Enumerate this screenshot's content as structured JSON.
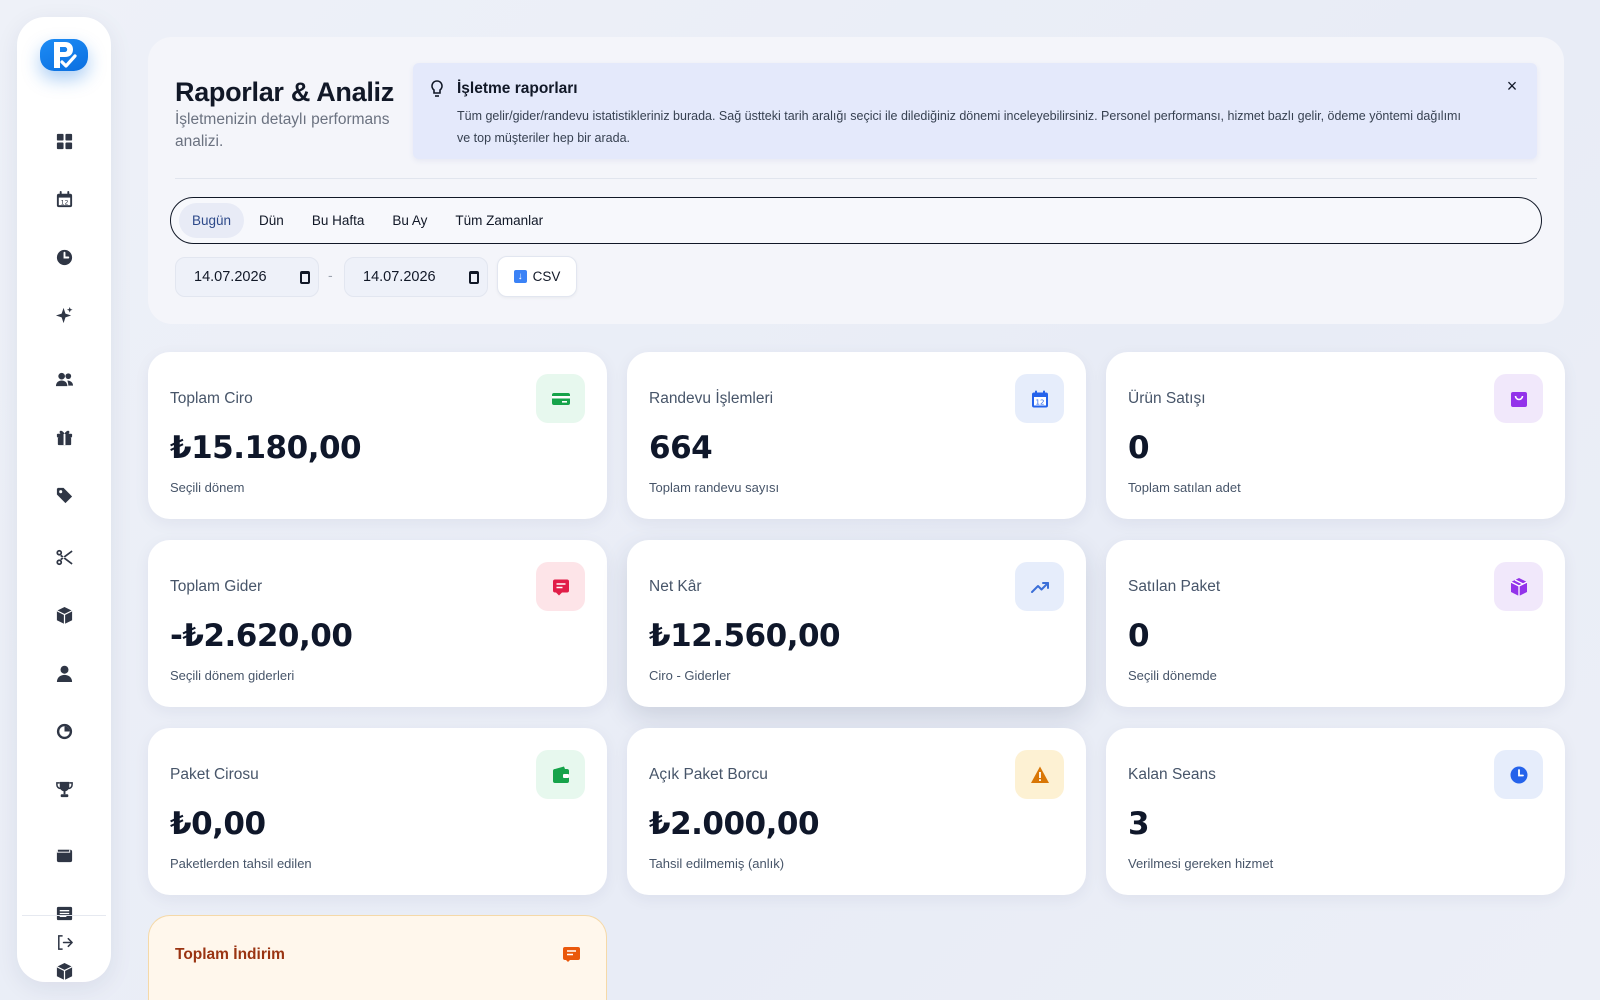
{
  "sidebar": {
    "logo_text": "R",
    "items": [
      {
        "icon": "dashboard-icon"
      },
      {
        "icon": "calendar-icon"
      },
      {
        "icon": "clock-icon"
      },
      {
        "icon": "sparkle-icon"
      },
      {
        "icon": "users-icon"
      },
      {
        "icon": "gift-icon"
      },
      {
        "icon": "tag-icon"
      },
      {
        "icon": "scissors-icon"
      },
      {
        "icon": "box-icon"
      },
      {
        "icon": "user-icon"
      },
      {
        "icon": "pie-chart-icon"
      },
      {
        "icon": "trophy-icon"
      },
      {
        "icon": "wallet-icon"
      },
      {
        "icon": "list-icon"
      },
      {
        "icon": "package-icon"
      }
    ],
    "logout_icon": "logout-icon"
  },
  "header": {
    "title": "Raporlar & Analiz",
    "subtitle": "İşletmenizin detaylı performans analizi."
  },
  "info": {
    "title": "İşletme raporları",
    "text": "Tüm gelir/gider/randevu istatistikleriniz burada. Sağ üstteki tarih aralığı seçici ile dilediğiniz dönemi inceleyebilirsiniz. Personel performansı, hizmet bazlı gelir, ödeme yöntemi dağılımı ve top müşteriler hep bir arada.",
    "close": "×"
  },
  "tabs": [
    "Bugün",
    "Dün",
    "Bu Hafta",
    "Bu Ay",
    "Tüm Zamanlar"
  ],
  "active_tab": "Bugün",
  "date_range": {
    "start": "14.07.2026",
    "end": "14.07.2026",
    "separator": "-"
  },
  "csv_label": "CSV",
  "cards": [
    {
      "title": "Toplam Ciro",
      "value": "₺15.180,00",
      "sub": "Seçili dönem",
      "icon": "credit-card-icon",
      "icon_color": "#16a34a",
      "icon_bg": "#e7f8ee"
    },
    {
      "title": "Randevu İşlemleri",
      "value": "664",
      "sub": "Toplam randevu sayısı",
      "icon": "calendar-icon",
      "icon_color": "#2563eb",
      "icon_bg": "#e6edfb"
    },
    {
      "title": "Ürün Satışı",
      "value": "0",
      "sub": "Toplam satılan adet",
      "icon": "shopping-bag-icon",
      "icon_color": "#9333ea",
      "icon_bg": "#f1e8fb"
    },
    {
      "title": "Toplam Gider",
      "value": "-₺2.620,00",
      "sub": "Seçili dönem giderleri",
      "icon": "receipt-icon",
      "icon_color": "#e11d48",
      "icon_bg": "#fde4e8"
    },
    {
      "title": "Net Kâr",
      "value": "₺12.560,00",
      "sub": "Ciro - Giderler",
      "icon": "trending-up-icon",
      "icon_color": "#3b6fd8",
      "icon_bg": "#e6edfb"
    },
    {
      "title": "Satılan Paket",
      "value": "0",
      "sub": "Seçili dönemde",
      "icon": "package-icon",
      "icon_color": "#9333ea",
      "icon_bg": "#f1e8fb"
    },
    {
      "title": "Paket Cirosu",
      "value": "₺0,00",
      "sub": "Paketlerden tahsil edilen",
      "icon": "wallet-icon",
      "icon_color": "#16a34a",
      "icon_bg": "#e7f8ee"
    },
    {
      "title": "Açık Paket Borcu",
      "value": "₺2.000,00",
      "sub": "Tahsil edilmemiş (anlık)",
      "icon": "warning-icon",
      "icon_color": "#d97706",
      "icon_bg": "#fdf1d3"
    },
    {
      "title": "Kalan Seans",
      "value": "3",
      "sub": "Verilmesi gereken hizmet",
      "icon": "clock-icon",
      "icon_color": "#2563eb",
      "icon_bg": "#e6edfb"
    }
  ],
  "discount_card": {
    "title": "Toplam İndirim",
    "icon": "receipt-icon",
    "icon_color": "#ea580c"
  }
}
